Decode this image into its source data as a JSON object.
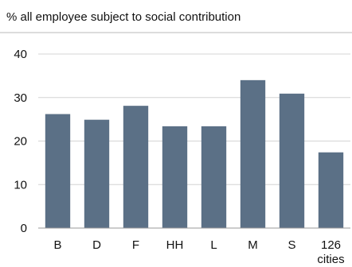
{
  "chart_data": {
    "type": "bar",
    "title": "% all employee subject to social contribution",
    "xlabel": "",
    "ylabel": "",
    "categories": [
      "B",
      "D",
      "F",
      "HH",
      "L",
      "M",
      "S",
      "126 cities"
    ],
    "values": [
      26.2,
      24.9,
      28.1,
      23.4,
      23.4,
      34.0,
      30.9,
      17.4
    ],
    "ylim": [
      0,
      40
    ],
    "yticks": [
      "0",
      "10",
      "20",
      "30",
      "40"
    ],
    "grid": true,
    "bar_color": "#5b7086"
  }
}
